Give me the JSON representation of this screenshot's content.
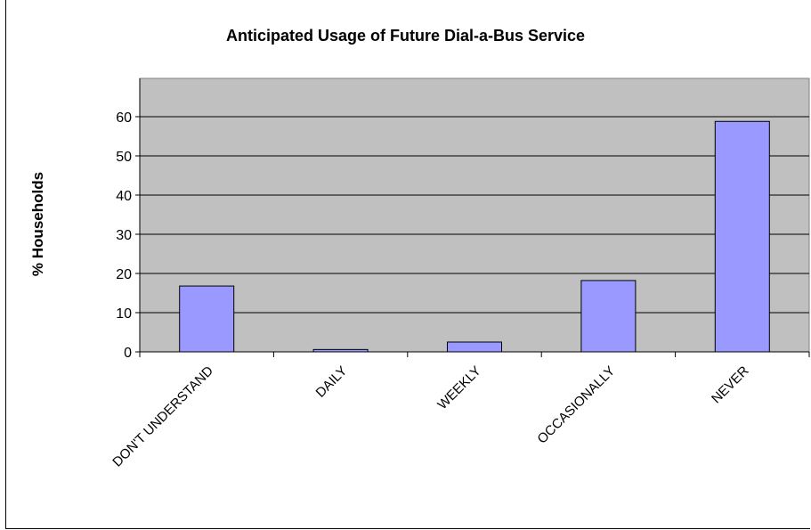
{
  "chart_data": {
    "type": "bar",
    "title": "Anticipated Usage of Future Dial-a-Bus Service",
    "xlabel": "",
    "ylabel": "% Households",
    "categories": [
      "DON'T UNDERSTAND",
      "DAILY",
      "WEEKLY",
      "OCCASIONALLY",
      "NEVER"
    ],
    "values": [
      16.8,
      0.6,
      2.5,
      18.2,
      58.8
    ],
    "ylim": [
      0,
      60
    ],
    "yticks": [
      0,
      10,
      20,
      30,
      40,
      50,
      60
    ],
    "grid": true,
    "legend": "none",
    "colors": {
      "plot_background": "#c0c0c0",
      "bar_fill": "#9999ff",
      "bar_stroke": "#000000",
      "gridline": "#000000"
    }
  }
}
